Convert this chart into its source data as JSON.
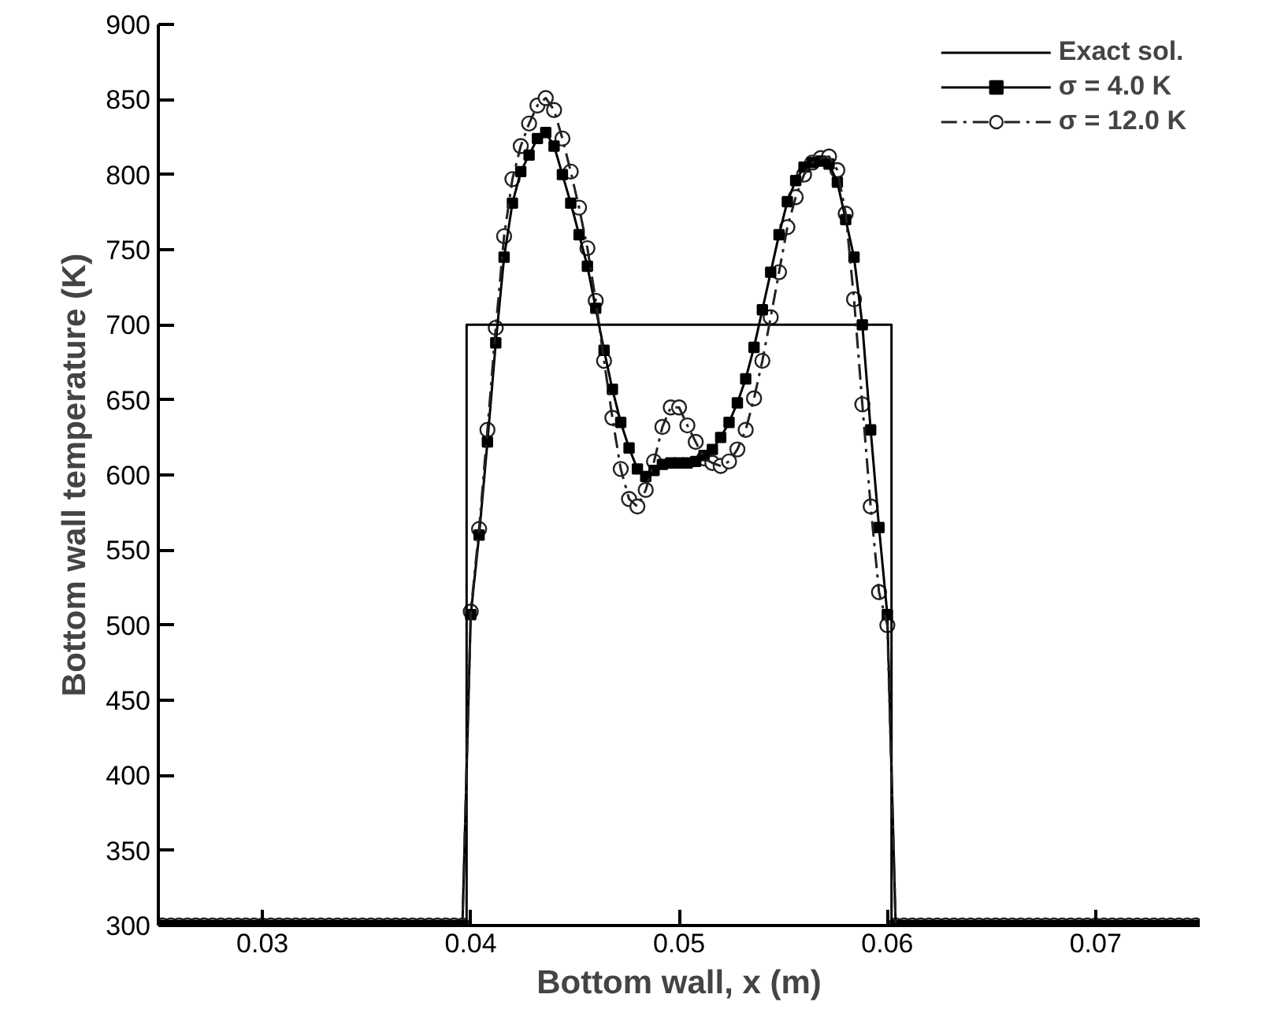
{
  "chart_data": {
    "type": "line",
    "xlabel": "Bottom wall, x (m)",
    "ylabel": "Bottom wall temperature (K)",
    "xlim": [
      0.025,
      0.075
    ],
    "ylim": [
      300,
      900
    ],
    "xticks": [
      0.03,
      0.04,
      0.05,
      0.06,
      0.07
    ],
    "yticks": [
      300,
      350,
      400,
      450,
      500,
      550,
      600,
      650,
      700,
      750,
      800,
      850,
      900
    ],
    "grid": false,
    "legend": "top right",
    "x": [
      0.0252,
      0.0256,
      0.026,
      0.0264,
      0.0268,
      0.0272,
      0.0276,
      0.028,
      0.0284,
      0.0288,
      0.0292,
      0.0296,
      0.03,
      0.0304,
      0.0308,
      0.0312,
      0.0316,
      0.032,
      0.0324,
      0.0328,
      0.0332,
      0.0336,
      0.034,
      0.0344,
      0.0348,
      0.0352,
      0.0356,
      0.036,
      0.0364,
      0.0368,
      0.0372,
      0.0376,
      0.038,
      0.0384,
      0.0388,
      0.0392,
      0.0396,
      0.04,
      0.0404,
      0.0408,
      0.0412,
      0.0416,
      0.042,
      0.0424,
      0.0428,
      0.0432,
      0.0436,
      0.044,
      0.0444,
      0.0448,
      0.0452,
      0.0456,
      0.046,
      0.0464,
      0.0468,
      0.0472,
      0.0476,
      0.048,
      0.0484,
      0.0488,
      0.0492,
      0.0496,
      0.05,
      0.0504,
      0.0508,
      0.0512,
      0.0516,
      0.052,
      0.0524,
      0.0528,
      0.0532,
      0.0536,
      0.054,
      0.0544,
      0.0548,
      0.0552,
      0.0556,
      0.056,
      0.0564,
      0.0568,
      0.0572,
      0.0576,
      0.058,
      0.0584,
      0.0588,
      0.0592,
      0.0596,
      0.06,
      0.0604,
      0.0608,
      0.0612,
      0.0616,
      0.062,
      0.0624,
      0.0628,
      0.0632,
      0.0636,
      0.064,
      0.0644,
      0.0648,
      0.0652,
      0.0656,
      0.066,
      0.0664,
      0.0668,
      0.0672,
      0.0676,
      0.068,
      0.0684,
      0.0688,
      0.0692,
      0.0696,
      0.07,
      0.0704,
      0.0708,
      0.0712,
      0.0716,
      0.072,
      0.0724,
      0.0728,
      0.0732,
      0.0736,
      0.074,
      0.0744,
      0.0748
    ],
    "series": [
      {
        "name": "Exact sol.",
        "color": "#000000",
        "marker": "none",
        "line_style": "solid",
        "x": [
          0.025,
          0.0398,
          0.0398,
          0.0602,
          0.0602,
          0.075
        ],
        "values": [
          300,
          300,
          700,
          700,
          300,
          300
        ]
      },
      {
        "name": "σ = 4.0 K",
        "color": "#000000",
        "marker": "square",
        "line_style": "solid",
        "values": [
          300,
          300,
          300,
          300,
          300,
          300,
          300,
          300,
          300,
          300,
          300,
          300,
          300,
          300,
          300,
          300,
          300,
          300,
          300,
          300,
          300,
          300,
          300,
          300,
          300,
          300,
          300,
          300,
          300,
          300,
          300,
          300,
          300,
          300,
          300,
          300,
          300,
          507,
          560,
          622,
          688,
          745,
          781,
          802,
          813,
          824,
          828,
          819,
          800,
          781,
          760,
          739,
          711,
          683,
          657,
          635,
          618,
          604,
          599,
          603,
          607,
          608,
          608,
          608,
          609,
          613,
          617,
          625,
          635,
          648,
          664,
          685,
          710,
          735,
          760,
          782,
          796,
          805,
          808,
          809,
          807,
          795,
          770,
          745,
          700,
          630,
          565,
          507,
          300,
          300,
          300,
          300,
          300,
          300,
          300,
          300,
          300,
          300,
          300,
          300,
          300,
          300,
          300,
          300,
          300,
          300,
          300,
          300,
          300,
          300,
          300,
          300,
          300,
          300,
          300,
          300,
          300,
          300,
          300,
          300,
          300,
          300,
          300,
          300,
          300
        ]
      },
      {
        "name": "σ = 12.0 K",
        "color": "#222222",
        "marker": "circle",
        "line_style": "dashed",
        "values": [
          300,
          300,
          300,
          300,
          300,
          300,
          300,
          300,
          300,
          300,
          300,
          300,
          300,
          300,
          300,
          300,
          300,
          300,
          300,
          300,
          300,
          300,
          300,
          300,
          300,
          300,
          300,
          300,
          300,
          300,
          300,
          300,
          300,
          300,
          300,
          300,
          300,
          509,
          564,
          630,
          698,
          759,
          797,
          819,
          834,
          846,
          851,
          843,
          824,
          802,
          778,
          751,
          716,
          676,
          638,
          604,
          584,
          579,
          590,
          609,
          632,
          645,
          645,
          633,
          622,
          611,
          608,
          606,
          609,
          617,
          630,
          651,
          676,
          705,
          735,
          765,
          785,
          800,
          808,
          811,
          812,
          803,
          774,
          717,
          647,
          579,
          522,
          500,
          300,
          300,
          300,
          300,
          300,
          300,
          300,
          300,
          300,
          300,
          300,
          300,
          300,
          300,
          300,
          300,
          300,
          300,
          300,
          300,
          300,
          300,
          300,
          300,
          300,
          300,
          300,
          300,
          300,
          300,
          300,
          300,
          300,
          300,
          300,
          300,
          300
        ]
      }
    ]
  }
}
